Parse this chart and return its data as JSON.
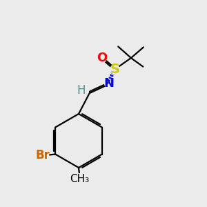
{
  "bg_color": "#ebebeb",
  "atom_colors": {
    "C": "#000000",
    "H": "#4a8f8f",
    "N": "#0000ee",
    "O": "#ff0000",
    "S": "#cccc00",
    "Br": "#cc6600"
  },
  "bond_color": "#000000",
  "bond_width": 1.6,
  "figsize": [
    3.0,
    3.0
  ],
  "dpi": 100
}
